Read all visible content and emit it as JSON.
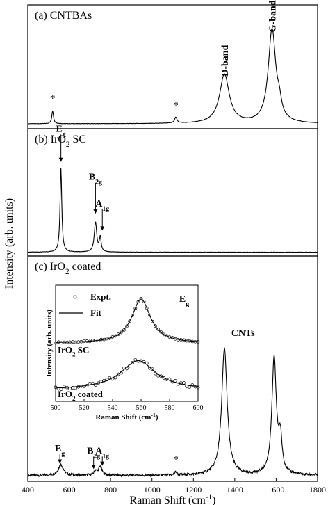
{
  "chart_data": {
    "type": "line",
    "shared_x": {
      "label_main": "Raman Shift (cm",
      "label_sup": "-1",
      "label_tail": ")",
      "range": [
        400,
        1800
      ],
      "ticks": [
        400,
        600,
        800,
        1000,
        1200,
        1400,
        1600,
        1800
      ]
    },
    "ylabel": "Intensity (arb. units)",
    "panels": [
      {
        "id": "a",
        "title_parts": [
          "(a) CNTBAs"
        ],
        "peaks": [
          {
            "x": 520,
            "h": 0.11,
            "w": 5
          },
          {
            "x": 1115,
            "h": 0.05,
            "w": 7
          },
          {
            "x": 1350,
            "h": 0.42,
            "w": 28
          },
          {
            "x": 1580,
            "h": 0.8,
            "w": 22
          },
          {
            "x": 1615,
            "h": 0.1,
            "w": 12
          }
        ],
        "baseline": 0.03,
        "annotations": [
          {
            "kind": "star",
            "text": "*",
            "x": 520,
            "y": 0.22
          },
          {
            "kind": "star",
            "text": "*",
            "x": 1115,
            "y": 0.16
          },
          {
            "kind": "label",
            "text": "D-band",
            "x": 1350,
            "y": 0.6
          },
          {
            "kind": "label",
            "text": "G-band",
            "x": 1580,
            "y": 0.98
          }
        ]
      },
      {
        "id": "b",
        "title_parts": [
          "(b) IrO",
          "2",
          " SC"
        ],
        "peaks": [
          {
            "x": 560,
            "h": 0.7,
            "w": 5
          },
          {
            "x": 727,
            "h": 0.25,
            "w": 7
          },
          {
            "x": 750,
            "h": 0.12,
            "w": 5
          }
        ],
        "baseline": 0.02,
        "annotations": [
          {
            "kind": "label_sub",
            "base": "E",
            "sub": "g",
            "x": 560,
            "y": 1.02,
            "arrow_to": 0.77
          },
          {
            "kind": "label_sub",
            "base": "B",
            "sub": "2g",
            "x": 727,
            "y": 0.62,
            "arrow_to": 0.34
          },
          {
            "kind": "label_sub",
            "base": "A",
            "sub": "1g",
            "x": 760,
            "y": 0.4,
            "arrow_to": 0.2
          }
        ]
      },
      {
        "id": "c",
        "title_parts": [
          "(c) IrO",
          "2",
          " coated"
        ],
        "peaks": [
          {
            "x": 560,
            "h": 0.05,
            "w": 15
          },
          {
            "x": 727,
            "h": 0.02,
            "w": 8
          },
          {
            "x": 750,
            "h": 0.04,
            "w": 10
          },
          {
            "x": 1115,
            "h": 0.015,
            "w": 6
          },
          {
            "x": 1350,
            "h": 0.58,
            "w": 16
          },
          {
            "x": 1590,
            "h": 0.53,
            "w": 13
          },
          {
            "x": 1620,
            "h": 0.15,
            "w": 10
          }
        ],
        "baseline": 0.02,
        "annotations": [
          {
            "kind": "label_sub",
            "base": "E",
            "sub": "g",
            "x": 555,
            "y": 0.13,
            "arrow_to": 0.075
          },
          {
            "kind": "label_sub",
            "base": "B",
            "sub": "2g",
            "x": 718,
            "y": 0.12,
            "arrow_to": 0.05
          },
          {
            "kind": "label_sub",
            "base": "A",
            "sub": "1g",
            "x": 760,
            "y": 0.12,
            "arrow_to": 0.065
          },
          {
            "kind": "star",
            "text": "*",
            "x": 1115,
            "y": 0.08
          },
          {
            "kind": "label",
            "text": "CNTs",
            "x": 1440,
            "y": 0.66
          }
        ]
      }
    ],
    "inset": {
      "xlabel_main": "Raman Shift (cm",
      "xlabel_sup": "-1",
      "xlabel_tail": ")",
      "ylabel": "Intensity (arb. units)",
      "xrange": [
        500,
        600
      ],
      "xticks": [
        500,
        520,
        540,
        560,
        580,
        600
      ],
      "legend_expt": "Expt.",
      "legend_fit": "Fit",
      "tag_base": "E",
      "tag_sub": "g",
      "curves": [
        {
          "label_base": "IrO",
          "label_sub": "2",
          "label_tail": " SC",
          "center": 560,
          "width": 8,
          "height": 0.38,
          "offset": 0.5
        },
        {
          "label_base": "IrO",
          "label_sub": "2",
          "label_tail": " coated",
          "center": 558,
          "width": 15,
          "height": 0.25,
          "offset": 0.1
        }
      ]
    }
  }
}
